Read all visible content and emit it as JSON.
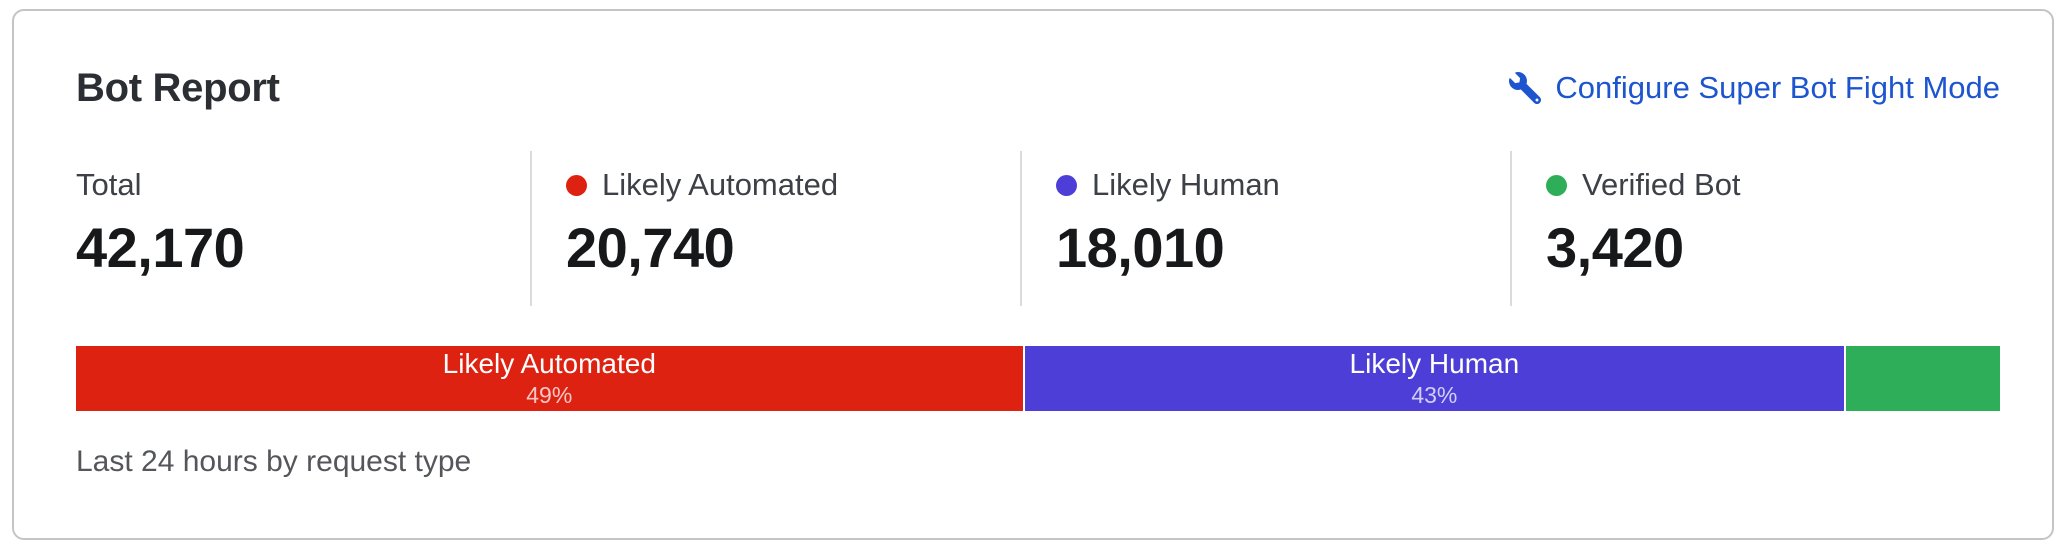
{
  "card": {
    "title": "Bot Report",
    "caption": "Last 24 hours by request type",
    "action": {
      "label": "Configure Super Bot Fight Mode",
      "icon": "wrench-icon"
    }
  },
  "colors": {
    "likely_automated_red": "#de2212",
    "likely_human_indigo": "#4c3ed6",
    "verified_bot_green": "#2eae58",
    "link_blue": "#1d55cf"
  },
  "stats": [
    {
      "label": "Total",
      "value": "42,170",
      "dot_color": null
    },
    {
      "label": "Likely Automated",
      "value": "20,740",
      "dot_color": "#de2212"
    },
    {
      "label": "Likely Human",
      "value": "18,010",
      "dot_color": "#4c3ed6"
    },
    {
      "label": "Verified Bot",
      "value": "3,420",
      "dot_color": "#2eae58"
    }
  ],
  "bar": {
    "segments": [
      {
        "name": "Likely Automated",
        "label": "Likely Automated",
        "percent_label": "49%",
        "percent": 49.2,
        "color": "#de2212"
      },
      {
        "name": "Likely Human",
        "label": "Likely Human",
        "percent_label": "43%",
        "percent": 42.7,
        "color": "#4c3ed6"
      },
      {
        "name": "Verified Bot",
        "label": "",
        "percent_label": "",
        "percent": 8.1,
        "color": "#2eae58"
      }
    ]
  },
  "chart_data": {
    "type": "bar",
    "variant": "horizontal-stacked-percentage",
    "title": "Bot Report",
    "subtitle": "Last 24 hours by request type",
    "total": 42170,
    "categories": [
      "Likely Automated",
      "Likely Human",
      "Verified Bot"
    ],
    "values": [
      20740,
      18010,
      3420
    ],
    "percents": [
      49,
      43,
      8
    ],
    "colors": [
      "#de2212",
      "#4c3ed6",
      "#2eae58"
    ],
    "legend_position": "top",
    "grid": false,
    "xlim": [
      0,
      100
    ]
  }
}
